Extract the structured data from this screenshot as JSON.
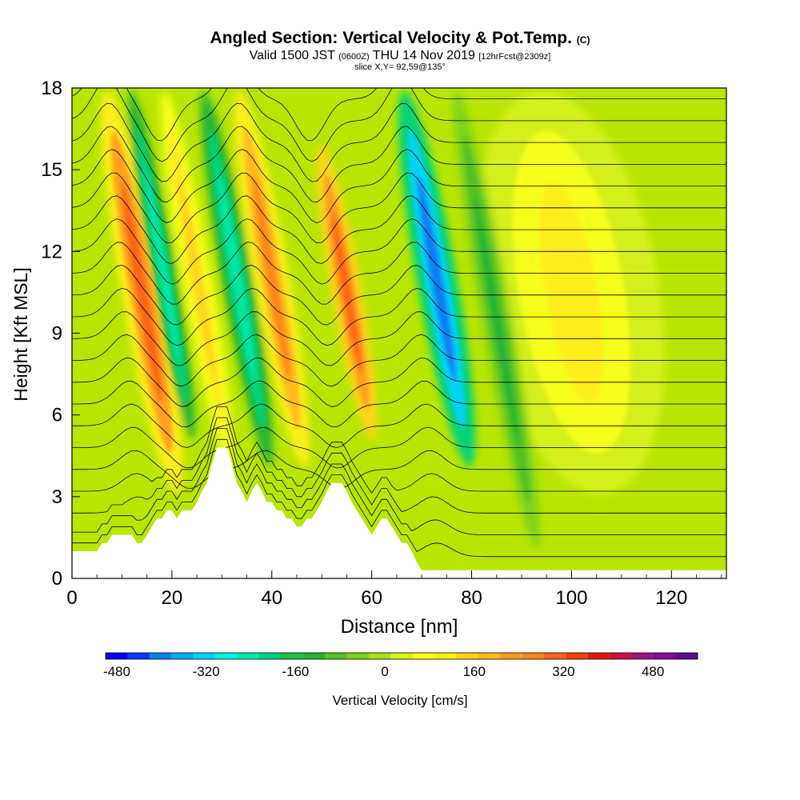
{
  "header": {
    "title": "Angled Section: Vertical Velocity & Pot.Temp.",
    "title_mark": "(C)",
    "valid_prefix": "Valid 1500 JST",
    "valid_utc": "(0600Z)",
    "valid_date": "THU 14 Nov 2019",
    "forecast": "[12hrFcst@2309z]",
    "slice": "slice X,Y= 92,59@135°"
  },
  "chart_data": {
    "type": "heatmap",
    "title": "Angled Section: Vertical Velocity & Pot.Temp.",
    "xlabel": "Distance [nm]",
    "ylabel": "Height [Kft MSL]",
    "xlim": [
      0,
      131
    ],
    "ylim": [
      0,
      18
    ],
    "x_ticks": [
      0,
      20,
      40,
      60,
      80,
      100,
      120
    ],
    "y_ticks": [
      0,
      3,
      6,
      9,
      12,
      15,
      18
    ],
    "grid": false,
    "field": "Vertical Velocity [cm/s] (shaded) with Potential Temperature (contours)",
    "updraft_bands": [
      {
        "x_center": 14,
        "x_range": [
          10,
          18
        ],
        "z_range": [
          3,
          18
        ],
        "max_w": 300
      },
      {
        "x_center": 25,
        "x_range": [
          22,
          28
        ],
        "z_range": [
          4,
          18
        ],
        "max_w": 150
      },
      {
        "x_center": 40,
        "x_range": [
          37,
          44
        ],
        "z_range": [
          4,
          18
        ],
        "max_w": 280
      },
      {
        "x_center": 55,
        "x_range": [
          52,
          58
        ],
        "z_range": [
          5,
          16
        ],
        "max_w": 330
      },
      {
        "x_center": 100,
        "x_range": [
          90,
          125
        ],
        "z_range": [
          3,
          18
        ],
        "max_w": 100
      }
    ],
    "downdraft_bands": [
      {
        "x_center": 18,
        "x_range": [
          16,
          21
        ],
        "z_range": [
          5,
          18
        ],
        "min_w": -250
      },
      {
        "x_center": 33,
        "x_range": [
          30,
          36
        ],
        "z_range": [
          4,
          18
        ],
        "min_w": -250
      },
      {
        "x_center": 73,
        "x_range": [
          69,
          77
        ],
        "z_range": [
          4,
          18
        ],
        "min_w": -420
      },
      {
        "x_center": 85,
        "x_range": [
          82,
          88
        ],
        "z_range": [
          1,
          18
        ],
        "min_w": -120
      }
    ],
    "terrain": {
      "x": [
        0,
        5,
        6,
        7,
        8,
        9,
        10,
        11,
        12,
        13,
        14,
        15,
        16,
        17,
        18,
        19,
        20,
        21,
        22,
        23,
        24,
        25,
        26,
        27,
        28,
        29,
        30,
        31,
        32,
        33,
        34,
        35,
        36,
        37,
        38,
        39,
        40,
        41,
        42,
        43,
        44,
        45,
        46,
        47,
        48,
        49,
        50,
        51,
        52,
        53,
        54,
        55,
        56,
        57,
        58,
        59,
        60,
        61,
        62,
        63,
        64,
        65,
        66,
        67,
        68,
        69,
        70,
        71,
        72,
        131
      ],
      "height_kft": [
        1.0,
        1.0,
        1.3,
        1.3,
        1.6,
        1.6,
        1.6,
        1.6,
        1.6,
        1.3,
        1.3,
        1.6,
        1.9,
        2.2,
        2.2,
        2.5,
        2.5,
        2.2,
        2.5,
        2.5,
        2.5,
        2.8,
        3.2,
        3.5,
        4.2,
        4.8,
        4.8,
        4.8,
        4.2,
        3.5,
        3.2,
        2.8,
        3.2,
        3.5,
        3.2,
        2.8,
        2.8,
        2.5,
        2.5,
        2.2,
        2.2,
        1.9,
        1.9,
        2.2,
        2.2,
        2.5,
        2.8,
        3.2,
        3.5,
        3.5,
        3.5,
        3.2,
        2.8,
        2.5,
        2.2,
        1.9,
        1.6,
        1.9,
        2.2,
        2.2,
        1.9,
        1.6,
        1.3,
        1.3,
        1.0,
        0.6,
        0.3,
        0.3,
        0.3,
        0.3
      ]
    },
    "colorbar": {
      "label": "Vertical Velocity [cm/s]",
      "min": -500,
      "max": 560,
      "step": 40,
      "tick_values": [
        -480,
        -320,
        -160,
        0,
        160,
        320,
        480
      ],
      "tick_labels": [
        "-480",
        "-320",
        "-160",
        "0",
        "160",
        "320",
        "480"
      ],
      "colors": [
        "#0000ff",
        "#0a3cff",
        "#0a7df5",
        "#00aaff",
        "#00d4f5",
        "#00f0e0",
        "#00e8a8",
        "#00d278",
        "#19c24a",
        "#27b336",
        "#55c220",
        "#7fd11a",
        "#a8e01a",
        "#d4f01a",
        "#f5ff1a",
        "#ffee1a",
        "#ffd41a",
        "#ffbb1a",
        "#ffa01a",
        "#ff8519",
        "#ff6419",
        "#f53c19",
        "#e61919",
        "#c81446",
        "#a0147d",
        "#780f96",
        "#5a0f8c"
      ]
    }
  },
  "colors": {
    "background_shade": "#b9e600",
    "terrain": "#ffffff",
    "contour": "#000000"
  }
}
